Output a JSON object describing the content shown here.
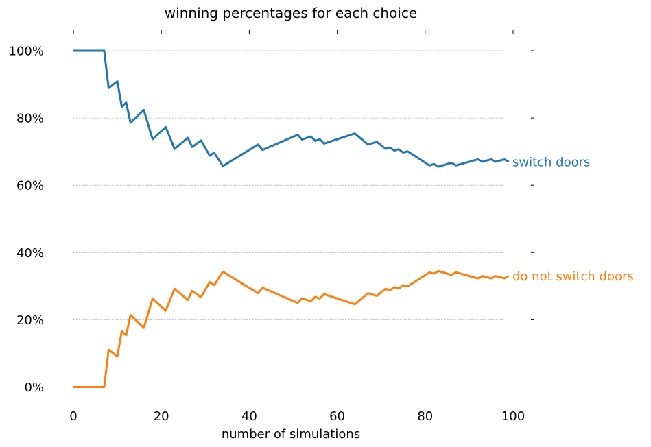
{
  "chart_data": {
    "type": "line",
    "title": "winning percentages for each choice",
    "xlabel": "number of simulations",
    "ylabel": "",
    "xlim": [
      0,
      100
    ],
    "ylim": [
      -0.02,
      1.03
    ],
    "x_ticks": [
      0,
      20,
      40,
      60,
      80,
      100
    ],
    "x_tick_labels": [
      "0",
      "20",
      "40",
      "60",
      "80",
      "100"
    ],
    "y_ticks": [
      0,
      0.2,
      0.4,
      0.6,
      0.8,
      1.0
    ],
    "y_tick_labels": [
      "0%",
      "20%",
      "40%",
      "60%",
      "80%",
      "100%"
    ],
    "grid": "horizontal dashed",
    "legend": "direct labels at line ends (right)",
    "series": [
      {
        "name": "switch doors",
        "color": "#1f77b4",
        "x": [
          0,
          7,
          8,
          10,
          11,
          12,
          13,
          16,
          18,
          21,
          23,
          26,
          27,
          29,
          31,
          32,
          34,
          42,
          43,
          51,
          52,
          54,
          55,
          56,
          57,
          64,
          67,
          69,
          71,
          72,
          73,
          74,
          75,
          76,
          81,
          82,
          83,
          86,
          87,
          92,
          93,
          95,
          96,
          98,
          99
        ],
        "values": [
          1.0,
          1.0,
          0.889,
          0.909,
          0.833,
          0.846,
          0.786,
          0.824,
          0.737,
          0.773,
          0.708,
          0.741,
          0.714,
          0.733,
          0.688,
          0.697,
          0.657,
          0.721,
          0.705,
          0.75,
          0.736,
          0.745,
          0.732,
          0.737,
          0.724,
          0.754,
          0.721,
          0.729,
          0.708,
          0.712,
          0.703,
          0.707,
          0.697,
          0.701,
          0.659,
          0.663,
          0.655,
          0.667,
          0.659,
          0.677,
          0.67,
          0.677,
          0.67,
          0.677,
          0.67
        ]
      },
      {
        "name": "do not switch doors",
        "color": "#ff7f0e",
        "x": [
          0,
          7,
          8,
          10,
          11,
          12,
          13,
          16,
          18,
          21,
          23,
          26,
          27,
          29,
          31,
          32,
          34,
          42,
          43,
          51,
          52,
          54,
          55,
          56,
          57,
          64,
          67,
          69,
          71,
          72,
          73,
          74,
          75,
          76,
          81,
          82,
          83,
          86,
          87,
          92,
          93,
          95,
          96,
          98,
          99
        ],
        "values": [
          0.0,
          0.0,
          0.111,
          0.091,
          0.167,
          0.154,
          0.214,
          0.176,
          0.263,
          0.227,
          0.292,
          0.259,
          0.286,
          0.267,
          0.312,
          0.303,
          0.343,
          0.279,
          0.295,
          0.25,
          0.264,
          0.255,
          0.268,
          0.263,
          0.276,
          0.246,
          0.279,
          0.271,
          0.292,
          0.288,
          0.297,
          0.293,
          0.303,
          0.299,
          0.341,
          0.337,
          0.345,
          0.333,
          0.341,
          0.323,
          0.33,
          0.323,
          0.33,
          0.323,
          0.33
        ]
      }
    ]
  }
}
